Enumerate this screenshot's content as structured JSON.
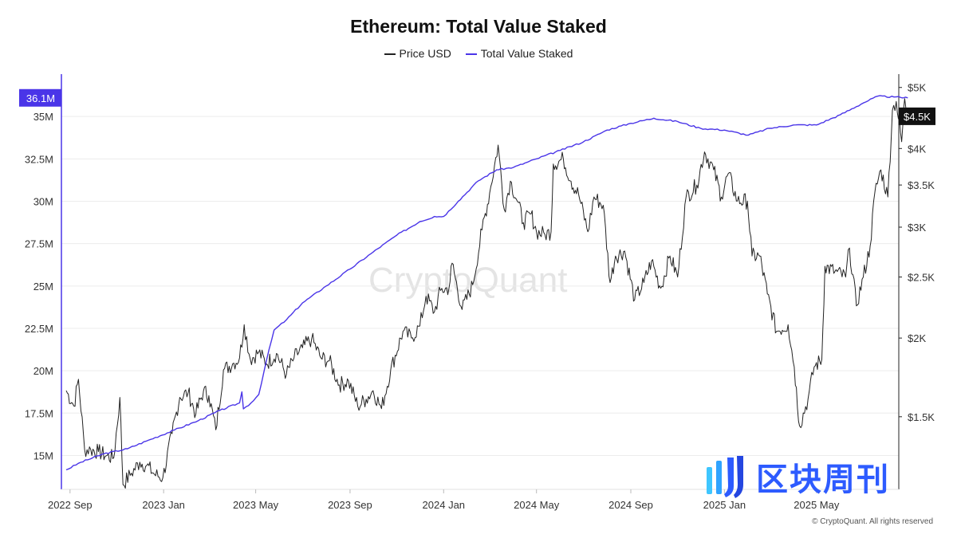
{
  "chart_data": {
    "type": "line",
    "title": "Ethereum: Total Value Staked",
    "legend_position": "top-center",
    "grid": {
      "horizontal": true,
      "vertical": false
    },
    "x_range": [
      "2022-08-27",
      "2025-08-09"
    ],
    "x_ticks": [
      {
        "date": "2022-09-01",
        "label": "2022 Sep"
      },
      {
        "date": "2023-01-01",
        "label": "2023 Jan"
      },
      {
        "date": "2023-05-01",
        "label": "2023 May"
      },
      {
        "date": "2023-09-01",
        "label": "2023 Sep"
      },
      {
        "date": "2024-01-01",
        "label": "2024 Jan"
      },
      {
        "date": "2024-05-01",
        "label": "2024 May"
      },
      {
        "date": "2024-09-01",
        "label": "2024 Sep"
      },
      {
        "date": "2025-01-01",
        "label": "2025 Jan"
      },
      {
        "date": "2025-05-01",
        "label": "2025 May"
      }
    ],
    "y_left": {
      "scale": "linear",
      "min": 13000000,
      "max": 37500000,
      "ticks": [
        {
          "value": 15000000,
          "label": "15M"
        },
        {
          "value": 17500000,
          "label": "17.5M"
        },
        {
          "value": 20000000,
          "label": "20M"
        },
        {
          "value": 22500000,
          "label": "22.5M"
        },
        {
          "value": 25000000,
          "label": "25M"
        },
        {
          "value": 27500000,
          "label": "27.5M"
        },
        {
          "value": 30000000,
          "label": "30M"
        },
        {
          "value": 32500000,
          "label": "32.5M"
        },
        {
          "value": 35000000,
          "label": "35M"
        }
      ],
      "current_value_label": "36.1M",
      "current_value": 36100000
    },
    "y_right": {
      "scale": "log",
      "min": 1150,
      "max": 5250,
      "ticks": [
        {
          "value": 1500,
          "label": "$1.5K"
        },
        {
          "value": 2000,
          "label": "$2K"
        },
        {
          "value": 2500,
          "label": "$2.5K"
        },
        {
          "value": 3000,
          "label": "$3K"
        },
        {
          "value": 3500,
          "label": "$3.5K"
        },
        {
          "value": 4000,
          "label": "$4K"
        },
        {
          "value": 5000,
          "label": "$5K"
        }
      ],
      "current_value_label": "$4.5K",
      "current_value": 4500
    },
    "series": [
      {
        "name": "Price USD",
        "axis": "right",
        "color": "#222222",
        "points": [
          [
            "2022-08-27",
            1650
          ],
          [
            "2022-09-06",
            1560
          ],
          [
            "2022-09-12",
            1720
          ],
          [
            "2022-09-20",
            1330
          ],
          [
            "2022-09-28",
            1330
          ],
          [
            "2022-10-08",
            1320
          ],
          [
            "2022-10-18",
            1300
          ],
          [
            "2022-10-28",
            1290
          ],
          [
            "2022-11-05",
            1610
          ],
          [
            "2022-11-09",
            1170
          ],
          [
            "2022-11-20",
            1220
          ],
          [
            "2022-12-01",
            1270
          ],
          [
            "2022-12-10",
            1255
          ],
          [
            "2022-12-20",
            1215
          ],
          [
            "2022-12-31",
            1200
          ],
          [
            "2023-01-12",
            1410
          ],
          [
            "2023-01-22",
            1610
          ],
          [
            "2023-02-02",
            1640
          ],
          [
            "2023-02-12",
            1515
          ],
          [
            "2023-02-22",
            1650
          ],
          [
            "2023-03-01",
            1620
          ],
          [
            "2023-03-10",
            1430
          ],
          [
            "2023-03-20",
            1780
          ],
          [
            "2023-04-01",
            1820
          ],
          [
            "2023-04-10",
            1860
          ],
          [
            "2023-04-16",
            2100
          ],
          [
            "2023-04-24",
            1850
          ],
          [
            "2023-05-05",
            1900
          ],
          [
            "2023-05-15",
            1820
          ],
          [
            "2023-05-28",
            1890
          ],
          [
            "2023-06-10",
            1750
          ],
          [
            "2023-06-20",
            1860
          ],
          [
            "2023-07-01",
            1930
          ],
          [
            "2023-07-13",
            1995
          ],
          [
            "2023-07-25",
            1860
          ],
          [
            "2023-08-05",
            1840
          ],
          [
            "2023-08-18",
            1685
          ],
          [
            "2023-08-30",
            1710
          ],
          [
            "2023-09-11",
            1560
          ],
          [
            "2023-09-22",
            1600
          ],
          [
            "2023-10-01",
            1650
          ],
          [
            "2023-10-12",
            1545
          ],
          [
            "2023-10-24",
            1780
          ],
          [
            "2023-11-09",
            2050
          ],
          [
            "2023-11-20",
            2000
          ],
          [
            "2023-12-01",
            2090
          ],
          [
            "2023-12-09",
            2330
          ],
          [
            "2023-12-20",
            2200
          ],
          [
            "2023-12-28",
            2380
          ],
          [
            "2024-01-08",
            2400
          ],
          [
            "2024-01-12",
            2630
          ],
          [
            "2024-01-25",
            2220
          ],
          [
            "2024-02-08",
            2430
          ],
          [
            "2024-02-20",
            2970
          ],
          [
            "2024-03-01",
            3400
          ],
          [
            "2024-03-12",
            4050
          ],
          [
            "2024-03-20",
            3200
          ],
          [
            "2024-03-28",
            3550
          ],
          [
            "2024-04-06",
            3300
          ],
          [
            "2024-04-14",
            3050
          ],
          [
            "2024-04-24",
            3150
          ],
          [
            "2024-05-01",
            2950
          ],
          [
            "2024-05-12",
            2920
          ],
          [
            "2024-05-20",
            2950
          ],
          [
            "2024-05-23",
            3780
          ],
          [
            "2024-06-05",
            3850
          ],
          [
            "2024-06-15",
            3550
          ],
          [
            "2024-06-25",
            3380
          ],
          [
            "2024-07-07",
            2950
          ],
          [
            "2024-07-15",
            3350
          ],
          [
            "2024-07-27",
            3250
          ],
          [
            "2024-08-05",
            2450
          ],
          [
            "2024-08-12",
            2700
          ],
          [
            "2024-08-24",
            2750
          ],
          [
            "2024-09-06",
            2300
          ],
          [
            "2024-09-18",
            2450
          ],
          [
            "2024-09-28",
            2650
          ],
          [
            "2024-10-10",
            2400
          ],
          [
            "2024-10-22",
            2700
          ],
          [
            "2024-11-01",
            2500
          ],
          [
            "2024-11-12",
            3350
          ],
          [
            "2024-11-26",
            3500
          ],
          [
            "2024-12-06",
            3950
          ],
          [
            "2024-12-18",
            3700
          ],
          [
            "2024-12-28",
            3350
          ],
          [
            "2025-01-06",
            3650
          ],
          [
            "2025-01-18",
            3300
          ],
          [
            "2025-01-31",
            3300
          ],
          [
            "2025-02-06",
            2700
          ],
          [
            "2025-02-16",
            2700
          ],
          [
            "2025-02-26",
            2350
          ],
          [
            "2025-03-10",
            2050
          ],
          [
            "2025-03-25",
            2100
          ],
          [
            "2025-04-02",
            1800
          ],
          [
            "2025-04-09",
            1450
          ],
          [
            "2025-04-20",
            1600
          ],
          [
            "2025-04-28",
            1800
          ],
          [
            "2025-05-08",
            1850
          ],
          [
            "2025-05-12",
            2600
          ],
          [
            "2025-05-25",
            2550
          ],
          [
            "2025-06-08",
            2500
          ],
          [
            "2025-06-13",
            2780
          ],
          [
            "2025-06-22",
            2250
          ],
          [
            "2025-07-01",
            2500
          ],
          [
            "2025-07-10",
            2800
          ],
          [
            "2025-07-16",
            3400
          ],
          [
            "2025-07-24",
            3700
          ],
          [
            "2025-08-02",
            3350
          ],
          [
            "2025-08-08",
            4600
          ],
          [
            "2025-08-13",
            4750
          ],
          [
            "2025-08-20",
            4100
          ],
          [
            "2025-08-24",
            4800
          ],
          [
            "2025-08-28",
            4500
          ]
        ]
      },
      {
        "name": "Total Value Staked",
        "axis": "left",
        "color": "#4a35e8",
        "points": [
          [
            "2022-08-27",
            14150000
          ],
          [
            "2022-09-15",
            14600000
          ],
          [
            "2022-10-15",
            15100000
          ],
          [
            "2022-11-15",
            15400000
          ],
          [
            "2022-12-15",
            15950000
          ],
          [
            "2023-01-15",
            16500000
          ],
          [
            "2023-02-15",
            17050000
          ],
          [
            "2023-03-15",
            17650000
          ],
          [
            "2023-04-10",
            18100000
          ],
          [
            "2023-04-13",
            18750000
          ],
          [
            "2023-04-15",
            17750000
          ],
          [
            "2023-04-25",
            18100000
          ],
          [
            "2023-05-05",
            18600000
          ],
          [
            "2023-05-15",
            20600000
          ],
          [
            "2023-05-25",
            22400000
          ],
          [
            "2023-06-10",
            23000000
          ],
          [
            "2023-07-01",
            24000000
          ],
          [
            "2023-08-01",
            25000000
          ],
          [
            "2023-09-01",
            26000000
          ],
          [
            "2023-10-01",
            27000000
          ],
          [
            "2023-11-01",
            28000000
          ],
          [
            "2023-12-01",
            28800000
          ],
          [
            "2023-12-20",
            29100000
          ],
          [
            "2024-01-01",
            29100000
          ],
          [
            "2024-01-20",
            30000000
          ],
          [
            "2024-02-15",
            31200000
          ],
          [
            "2024-03-10",
            31850000
          ],
          [
            "2024-04-01",
            32000000
          ],
          [
            "2024-05-01",
            32500000
          ],
          [
            "2024-06-01",
            33000000
          ],
          [
            "2024-07-01",
            33500000
          ],
          [
            "2024-08-01",
            34200000
          ],
          [
            "2024-09-01",
            34600000
          ],
          [
            "2024-10-01",
            34900000
          ],
          [
            "2024-11-01",
            34700000
          ],
          [
            "2024-12-01",
            34300000
          ],
          [
            "2025-01-01",
            34200000
          ],
          [
            "2025-02-01",
            33900000
          ],
          [
            "2025-03-01",
            34300000
          ],
          [
            "2025-04-01",
            34500000
          ],
          [
            "2025-05-01",
            34500000
          ],
          [
            "2025-06-01",
            35100000
          ],
          [
            "2025-07-01",
            35800000
          ],
          [
            "2025-07-20",
            36200000
          ],
          [
            "2025-08-10",
            36150000
          ],
          [
            "2025-08-28",
            36100000
          ]
        ]
      }
    ]
  },
  "watermark": "CryptoQuant",
  "brand": {
    "name": "区块周刊",
    "accent": "#2d5bff"
  },
  "copyright": "© CryptoQuant. All rights reserved"
}
